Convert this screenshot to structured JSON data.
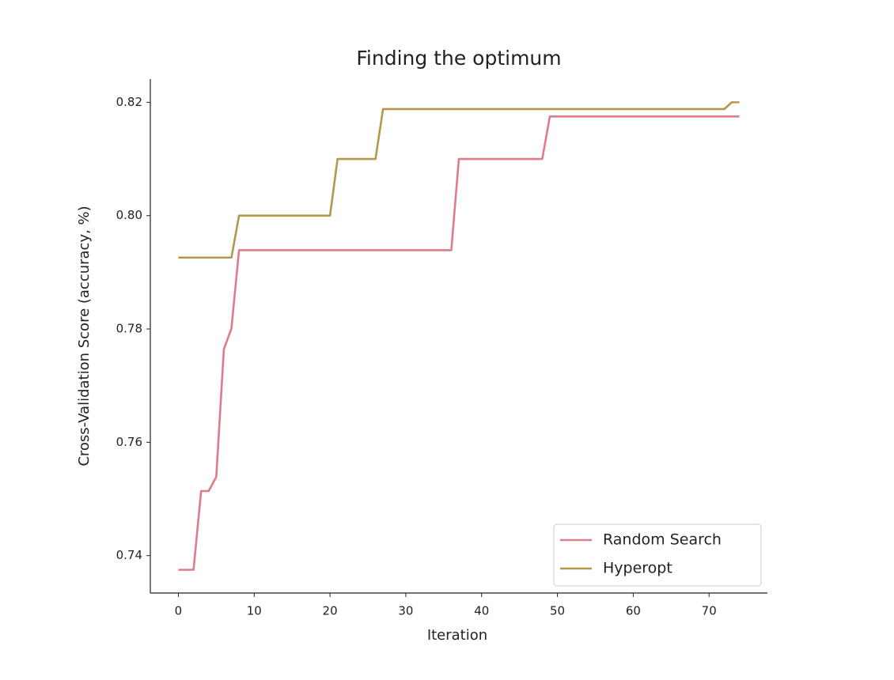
{
  "chart_data": {
    "type": "line",
    "title": "Finding the optimum",
    "x_label": "Iteration",
    "y_label": "Cross-Validation Score (accuracy, %)",
    "x": [
      0,
      1,
      2,
      3,
      4,
      5,
      6,
      7,
      8,
      9,
      10,
      11,
      12,
      13,
      14,
      15,
      16,
      17,
      18,
      19,
      20,
      21,
      22,
      23,
      24,
      25,
      26,
      27,
      28,
      29,
      30,
      31,
      32,
      33,
      34,
      35,
      36,
      37,
      38,
      39,
      40,
      41,
      42,
      43,
      44,
      45,
      46,
      47,
      48,
      49,
      50,
      51,
      52,
      53,
      54,
      55,
      56,
      57,
      58,
      59,
      60,
      61,
      62,
      63,
      64,
      65,
      66,
      67,
      68,
      69,
      70,
      71,
      72,
      73,
      74
    ],
    "series": [
      {
        "name": "Random Search",
        "color": "#e07b8a",
        "values": [
          0.7375,
          0.7375,
          0.7375,
          0.7514,
          0.7514,
          0.7539,
          0.7764,
          0.7801,
          0.7939,
          0.7939,
          0.7939,
          0.7939,
          0.7939,
          0.7939,
          0.7939,
          0.7939,
          0.7939,
          0.7939,
          0.7939,
          0.7939,
          0.7939,
          0.7939,
          0.7939,
          0.7939,
          0.7939,
          0.7939,
          0.7939,
          0.7939,
          0.7939,
          0.7939,
          0.7939,
          0.7939,
          0.7939,
          0.7939,
          0.7939,
          0.7939,
          0.7939,
          0.81,
          0.81,
          0.81,
          0.81,
          0.81,
          0.81,
          0.81,
          0.81,
          0.81,
          0.81,
          0.81,
          0.81,
          0.8175,
          0.8175,
          0.8175,
          0.8175,
          0.8175,
          0.8175,
          0.8175,
          0.8175,
          0.8175,
          0.8175,
          0.8175,
          0.8175,
          0.8175,
          0.8175,
          0.8175,
          0.8175,
          0.8175,
          0.8175,
          0.8175,
          0.8175,
          0.8175,
          0.8175,
          0.8175,
          0.8175,
          0.8175,
          0.8175
        ]
      },
      {
        "name": "Hyperopt",
        "color": "#b5974a",
        "values": [
          0.7926,
          0.7926,
          0.7926,
          0.7926,
          0.7926,
          0.7926,
          0.7926,
          0.7926,
          0.8,
          0.8,
          0.8,
          0.8,
          0.8,
          0.8,
          0.8,
          0.8,
          0.8,
          0.8,
          0.8,
          0.8,
          0.8,
          0.81,
          0.81,
          0.81,
          0.81,
          0.81,
          0.81,
          0.8188,
          0.8188,
          0.8188,
          0.8188,
          0.8188,
          0.8188,
          0.8188,
          0.8188,
          0.8188,
          0.8188,
          0.8188,
          0.8188,
          0.8188,
          0.8188,
          0.8188,
          0.8188,
          0.8188,
          0.8188,
          0.8188,
          0.8188,
          0.8188,
          0.8188,
          0.8188,
          0.8188,
          0.8188,
          0.8188,
          0.8188,
          0.8188,
          0.8188,
          0.8188,
          0.8188,
          0.8188,
          0.8188,
          0.8188,
          0.8188,
          0.8188,
          0.8188,
          0.8188,
          0.8188,
          0.8188,
          0.8188,
          0.8188,
          0.8188,
          0.8188,
          0.8188,
          0.8188,
          0.82,
          0.82
        ]
      }
    ],
    "xlim": [
      -3.7,
      77.7
    ],
    "xticks": [
      0,
      10,
      20,
      30,
      40,
      50,
      60,
      70
    ],
    "ylim": [
      0.7334,
      0.8241
    ],
    "yticks": [
      0.74,
      0.76,
      0.78,
      {
        "value": 0.8,
        "label": "0.80"
      },
      0.82
    ],
    "legend": "lower right",
    "grid": false
  }
}
